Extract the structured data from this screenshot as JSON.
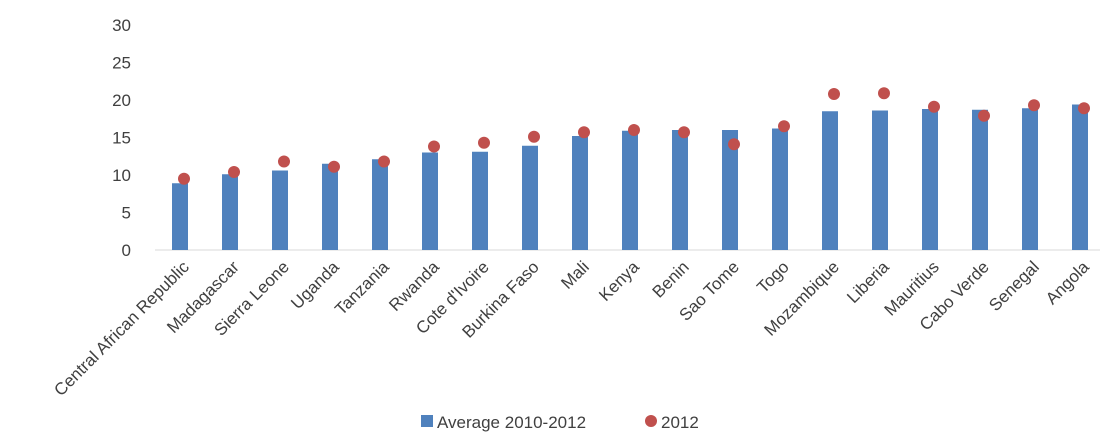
{
  "chart_data": {
    "type": "bar",
    "categories": [
      "Central African Republic",
      "Madagascar",
      "Sierra Leone",
      "Uganda",
      "Tanzania",
      "Rwanda",
      "Cote d'Ivoire",
      "Burkina Faso",
      "Mali",
      "Kenya",
      "Benin",
      "Sao Tome",
      "Togo",
      "Mozambique",
      "Liberia",
      "Mauritius",
      "Cabo Verde",
      "Senegal",
      "Angola"
    ],
    "series": [
      {
        "name": "Average 2010-2012",
        "kind": "bar",
        "color": "#4f81bd",
        "values": [
          8.9,
          10.1,
          10.6,
          11.5,
          12.1,
          13.0,
          13.1,
          13.9,
          15.2,
          15.9,
          16.0,
          16.0,
          16.2,
          18.5,
          18.6,
          18.8,
          18.7,
          18.9,
          19.4
        ]
      },
      {
        "name": "2012",
        "kind": "marker",
        "color": "#c0504d",
        "values": [
          9.5,
          10.4,
          11.8,
          11.1,
          11.8,
          13.8,
          14.3,
          15.1,
          15.7,
          16.0,
          15.7,
          14.1,
          16.5,
          20.8,
          20.9,
          19.1,
          17.9,
          19.3,
          18.9
        ]
      }
    ],
    "ylim": [
      0,
      30
    ],
    "yticks": [
      "0",
      "5",
      "10",
      "15",
      "20",
      "25",
      "30"
    ],
    "title": "",
    "xlabel": "",
    "ylabel": "",
    "grid": false,
    "legend": "bottom-center"
  }
}
